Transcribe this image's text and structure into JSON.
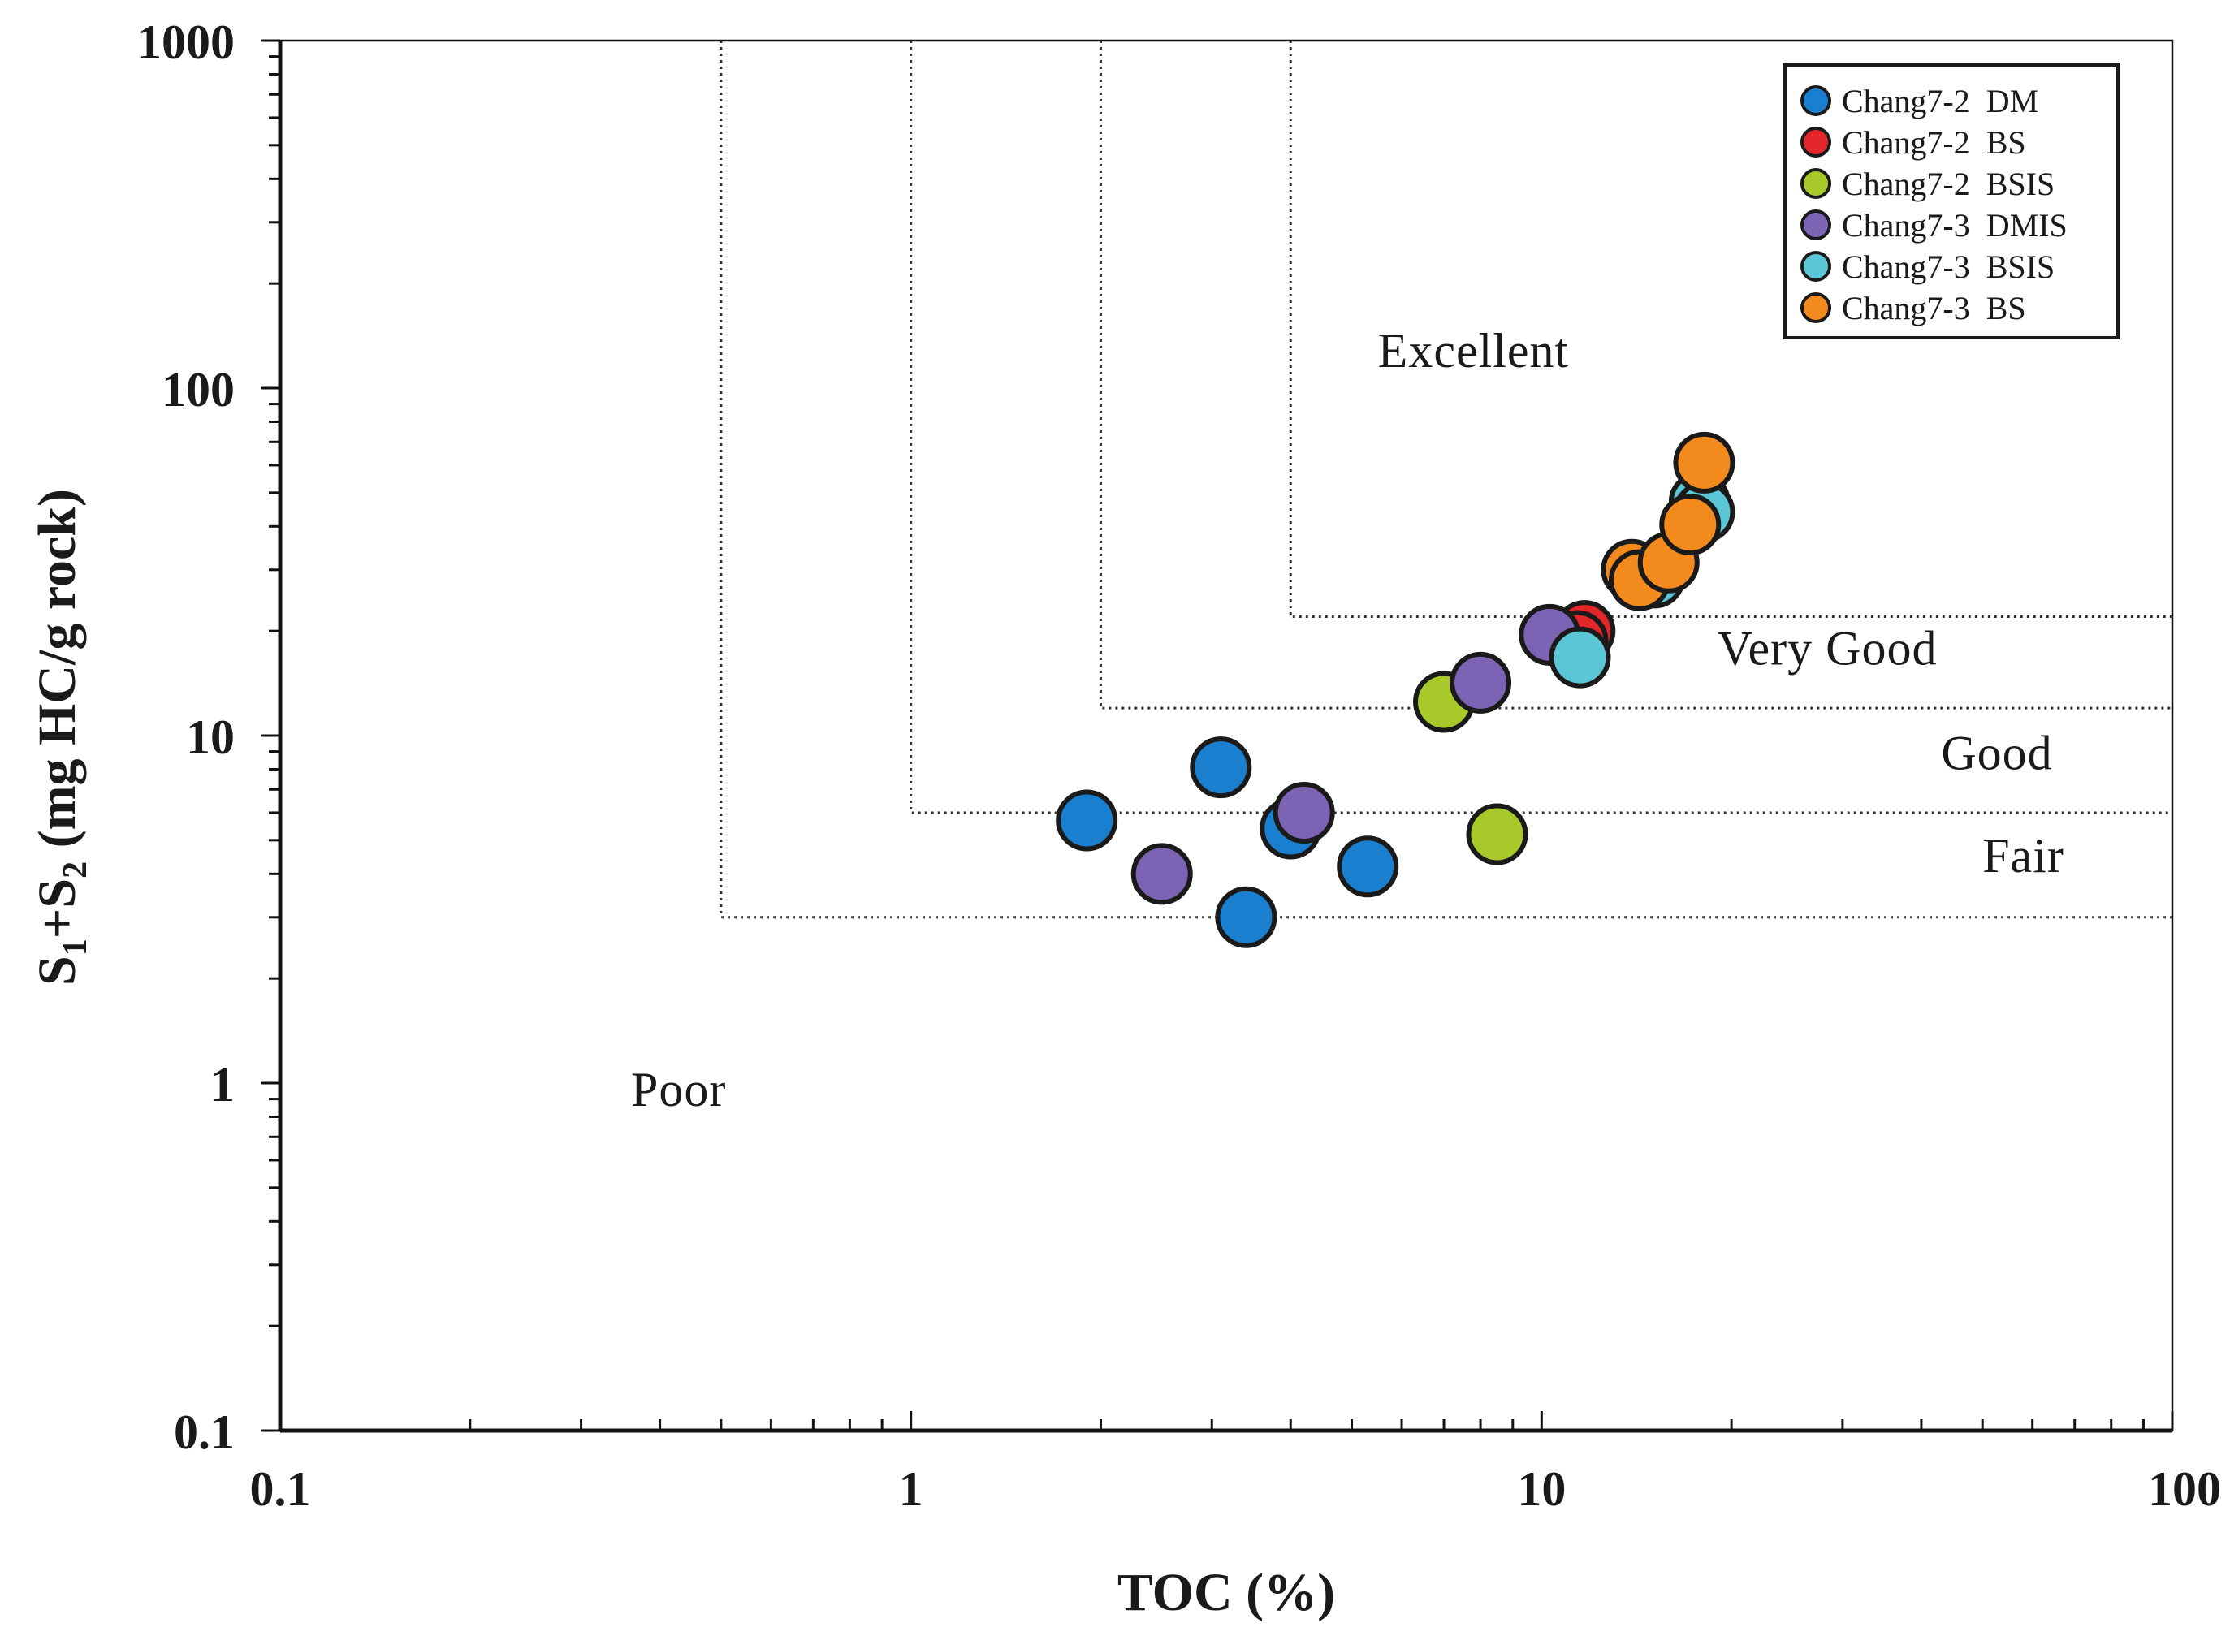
{
  "chart_data": {
    "type": "scatter",
    "xscale": "log",
    "yscale": "log",
    "xlim": [
      0.1,
      100
    ],
    "ylim": [
      0.1,
      1000
    ],
    "xlabel": "TOC (%)",
    "ylabel": {
      "prefix": "S",
      "sub1": "1",
      "plus": "+S",
      "sub2": "2",
      "suffix": " (mg HC/g rock)"
    },
    "xticks": [
      {
        "value": 0.1,
        "label": "0.1"
      },
      {
        "value": 1,
        "label": "1"
      },
      {
        "value": 10,
        "label": "10"
      },
      {
        "value": 100,
        "label": "100"
      }
    ],
    "yticks": [
      {
        "value": 0.1,
        "label": "0.1"
      },
      {
        "value": 1,
        "label": "1"
      },
      {
        "value": 10,
        "label": "10"
      },
      {
        "value": 100,
        "label": "100"
      },
      {
        "value": 1000,
        "label": "1000"
      }
    ],
    "grid": false,
    "legend_position": "top-right",
    "boundaries": [
      {
        "name": "Fair",
        "toc": 0.5,
        "s1s2": 3
      },
      {
        "name": "Good",
        "toc": 1,
        "s1s2": 6
      },
      {
        "name": "Very Good",
        "toc": 2,
        "s1s2": 12
      },
      {
        "name": "Excellent",
        "toc": 4,
        "s1s2": 22
      }
    ],
    "region_labels": [
      {
        "text": "Excellent",
        "x": 5.5,
        "y": 115
      },
      {
        "text": "Very  Good",
        "x": 19,
        "y": 16
      },
      {
        "text": "Good",
        "x": 43,
        "y": 8
      },
      {
        "text": "Fair",
        "x": 50,
        "y": 4.05
      },
      {
        "text": "Poor",
        "x": 0.36,
        "y": 0.86
      }
    ],
    "series": [
      {
        "name": "Chang7-2  DM",
        "color": "#1b7fd0",
        "points": [
          [
            1.9,
            5.7
          ],
          [
            3.1,
            8.1
          ],
          [
            4.0,
            5.4
          ],
          [
            3.4,
            3.0
          ],
          [
            5.3,
            4.2
          ]
        ]
      },
      {
        "name": "Chang7-2  BS",
        "color": "#e3262a",
        "points": [
          [
            11.7,
            20.0
          ],
          [
            11.4,
            18.7
          ]
        ]
      },
      {
        "name": "Chang7-2  BSIS",
        "color": "#a9c92a",
        "points": [
          [
            7.0,
            12.5
          ],
          [
            8.5,
            5.2
          ]
        ]
      },
      {
        "name": "Chang7-3  DMIS",
        "color": "#7d63b4",
        "points": [
          [
            2.5,
            4.0
          ],
          [
            4.2,
            6.0
          ],
          [
            8.0,
            14.2
          ],
          [
            10.3,
            19.5
          ]
        ]
      },
      {
        "name": "Chang7-3  BSIS",
        "color": "#5bc7d6",
        "points": [
          [
            11.5,
            16.8
          ],
          [
            15.1,
            28.5
          ],
          [
            17.8,
            47.0
          ],
          [
            18.1,
            44.0
          ]
        ]
      },
      {
        "name": "Chang7-3  BS",
        "color": "#f28a1e",
        "points": [
          [
            13.9,
            30.0
          ],
          [
            14.3,
            28.0
          ],
          [
            15.9,
            31.5
          ],
          [
            17.2,
            40.5
          ],
          [
            18.1,
            61.0
          ]
        ]
      }
    ]
  }
}
